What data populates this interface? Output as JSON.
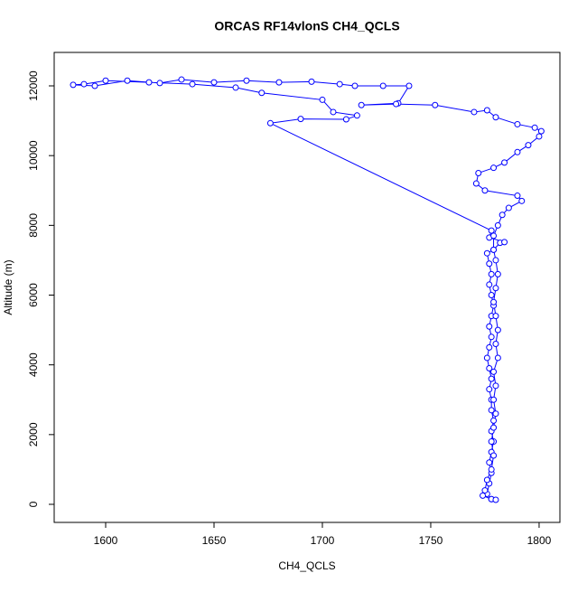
{
  "chart_data": {
    "type": "line",
    "title": "ORCAS RF14vlonS CH4_QCLS",
    "x_label": "CH4_QCLS",
    "y_label": "Altitude (m)",
    "color": "#0000ff",
    "marker": "open-circle",
    "xlim": [
      1576.25,
      1809.6
    ],
    "ylim": [
      -518,
      12959
    ],
    "xticks": [
      1600,
      1650,
      1700,
      1750,
      1800
    ],
    "yticks": [
      0,
      2000,
      4000,
      6000,
      8000,
      10000,
      12000
    ],
    "x": [
      1778,
      1776,
      1777,
      1778,
      1777,
      1778,
      1779,
      1778,
      1779,
      1778,
      1778,
      1777,
      1778,
      1777,
      1776,
      1777,
      1778,
      1777,
      1778,
      1779,
      1778,
      1777,
      1778,
      1777,
      1776,
      1779,
      1782,
      1784,
      1777,
      1778,
      1676,
      1690,
      1711,
      1716,
      1705,
      1700,
      1672,
      1660,
      1640,
      1620,
      1600,
      1590,
      1585,
      1595,
      1610,
      1625,
      1635,
      1650,
      1665,
      1680,
      1695,
      1708,
      1715,
      1728,
      1740,
      1735,
      1718,
      1734,
      1752,
      1770,
      1776,
      1780,
      1790,
      1798,
      1801,
      1800,
      1795,
      1790,
      1784,
      1779,
      1772,
      1771,
      1775,
      1790,
      1792,
      1786,
      1783,
      1781,
      1779,
      1779,
      1780,
      1781,
      1780,
      1779,
      1780,
      1781,
      1780,
      1781,
      1779,
      1780,
      1779,
      1780,
      1779,
      1778,
      1779,
      1778,
      1776,
      1775,
      1774,
      1778,
      1780
    ],
    "y": [
      150,
      300,
      600,
      900,
      1200,
      1500,
      1800,
      2100,
      2400,
      2700,
      3000,
      3300,
      3600,
      3900,
      4200,
      4500,
      4800,
      5100,
      5400,
      5700,
      6000,
      6300,
      6600,
      6900,
      7200,
      7300,
      7500,
      7520,
      7650,
      7850,
      10930,
      11050,
      11040,
      11150,
      11250,
      11600,
      11800,
      11950,
      12050,
      12100,
      12150,
      12050,
      12030,
      12000,
      12150,
      12080,
      12180,
      12100,
      12150,
      12100,
      12120,
      12050,
      12000,
      12000,
      12000,
      11500,
      11450,
      11480,
      11450,
      11250,
      11300,
      11100,
      10900,
      10800,
      10700,
      10550,
      10300,
      10100,
      9800,
      9650,
      9500,
      9200,
      9000,
      8850,
      8700,
      8500,
      8300,
      8000,
      7700,
      7300,
      7000,
      6600,
      6200,
      5800,
      5400,
      5000,
      4600,
      4200,
      3800,
      3400,
      3000,
      2600,
      2200,
      1800,
      1400,
      1000,
      700,
      400,
      250,
      150,
      130
    ]
  }
}
